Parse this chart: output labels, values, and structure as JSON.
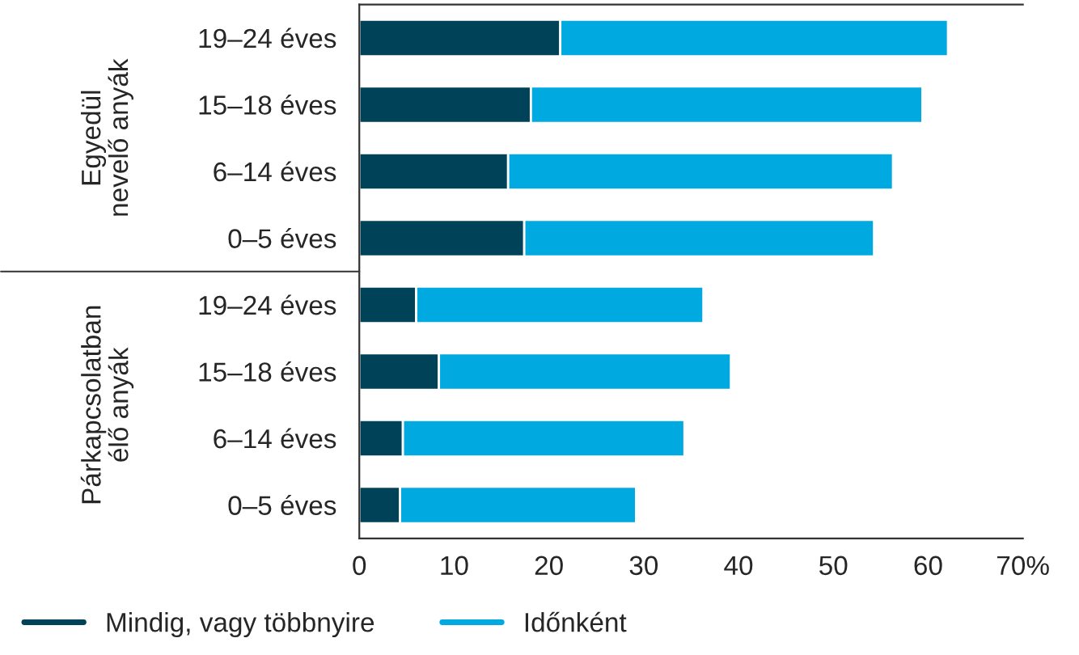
{
  "chart_data": {
    "type": "bar",
    "orientation": "horizontal",
    "stacked": true,
    "categories": [
      "19–24 éves",
      "15–18 éves",
      "6–14 éves",
      "0–5 éves",
      "19–24 éves",
      "15–18 éves",
      "6–14 éves",
      "0–5 éves"
    ],
    "series": [
      {
        "name": "Mindig, vagy többnyire",
        "color": "#004359",
        "values": [
          21.2,
          18.1,
          15.7,
          17.4,
          6.0,
          8.4,
          4.6,
          4.3
        ]
      },
      {
        "name": "Időnként",
        "color": "#00a9e0",
        "values": [
          40.9,
          41.3,
          40.6,
          36.9,
          30.3,
          30.8,
          29.7,
          24.9
        ]
      }
    ],
    "xlim": [
      0,
      70
    ],
    "xticks": [
      0,
      10,
      20,
      30,
      40,
      50,
      60,
      {
        "value": 70,
        "label": "70%"
      }
    ],
    "annotations": [
      "Egyedül nevelő anyák",
      "Párkapcsolatban élő anyák"
    ],
    "grid": false,
    "legend": "bottom"
  }
}
